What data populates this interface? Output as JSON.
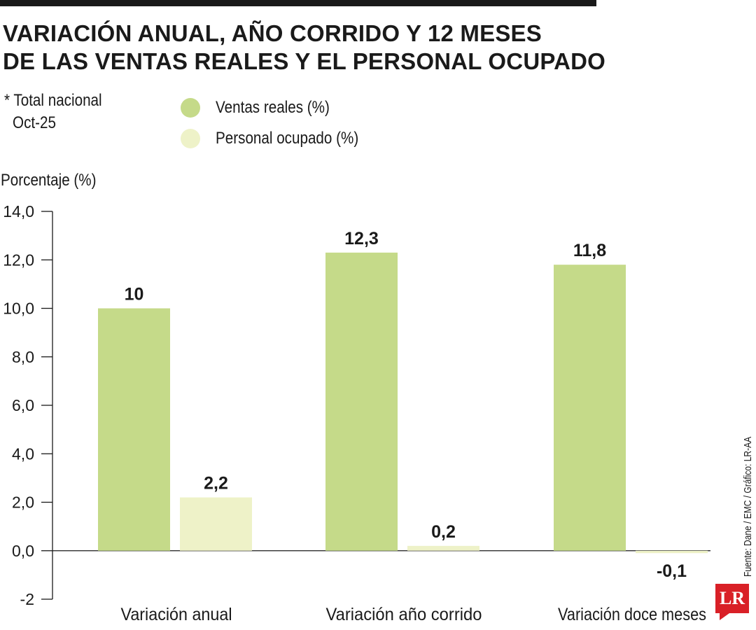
{
  "title_lines": [
    "VARIACIÓN ANUAL, AÑO CORRIDO Y 12 MESES",
    "DE LAS VENTAS REALES Y EL PERSONAL OCUPADO"
  ],
  "note": {
    "line1": "* Total nacional",
    "line2": "Oct-25"
  },
  "source": "Fuente: Dane / EMC / Gráfico: LR-AA",
  "logo": "LR",
  "colors": {
    "ventas": "#c5da89",
    "personal": "#eef2c8",
    "axis": "#1a1a1a",
    "topbar": "#1a1a1a",
    "logo": "#d92027"
  },
  "chart_data": {
    "type": "bar",
    "title": "VARIACIÓN ANUAL, AÑO CORRIDO Y 12 MESES DE LAS VENTAS REALES Y EL PERSONAL OCUPADO",
    "ylabel": "Porcentaje (%)",
    "xlabel": "",
    "ylim": [
      -2,
      14
    ],
    "yticks": [
      -2,
      0,
      2,
      4,
      6,
      8,
      10,
      12,
      14
    ],
    "ytick_labels": [
      "-2",
      "0,0",
      "2,0",
      "4,0",
      "6,0",
      "8,0",
      "10,0",
      "12,0",
      "14,0"
    ],
    "categories": [
      "Variación anual",
      "Variación año corrido",
      "Variación doce meses"
    ],
    "series": [
      {
        "name": "Ventas reales (%)",
        "values": [
          10,
          12.3,
          11.8
        ],
        "labels": [
          "10",
          "12,3",
          "11,8"
        ]
      },
      {
        "name": "Personal ocupado (%)",
        "values": [
          2.2,
          0.2,
          -0.1
        ],
        "labels": [
          "2,2",
          "0,2",
          "-0,1"
        ]
      }
    ],
    "legend_position": "top",
    "grid": false
  }
}
